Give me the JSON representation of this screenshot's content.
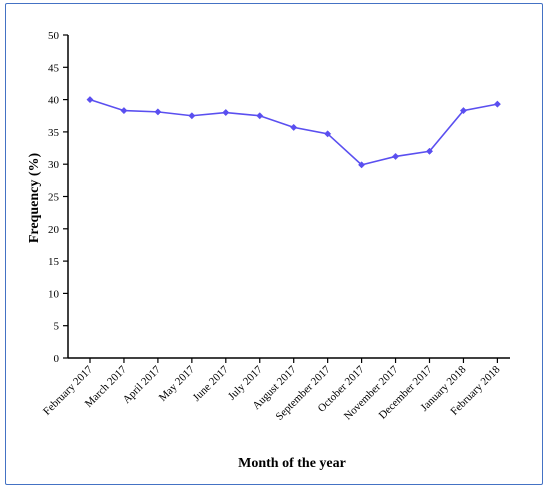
{
  "chart_data": {
    "type": "line",
    "title": "",
    "xlabel": "Month of the year",
    "ylabel": "Frequency (%)",
    "ylim": [
      0,
      50
    ],
    "yticks": [
      0,
      5,
      10,
      15,
      20,
      25,
      30,
      35,
      40,
      45,
      50
    ],
    "categories": [
      "February 2017",
      "March 2017",
      "April 2017",
      "May 2017",
      "June 2017",
      "July 2017",
      "August 2017",
      "September 2017",
      "October 2017",
      "November 2017",
      "December 2017",
      "January 2018",
      "February 2018"
    ],
    "series": [
      {
        "color": "#5a4ff0",
        "marker": "diamond",
        "values": [
          40.0,
          38.3,
          38.1,
          37.5,
          38.0,
          37.5,
          35.7,
          34.7,
          29.9,
          31.2,
          32.0,
          38.3,
          39.3
        ]
      }
    ],
    "grid": false,
    "legend": "none"
  }
}
